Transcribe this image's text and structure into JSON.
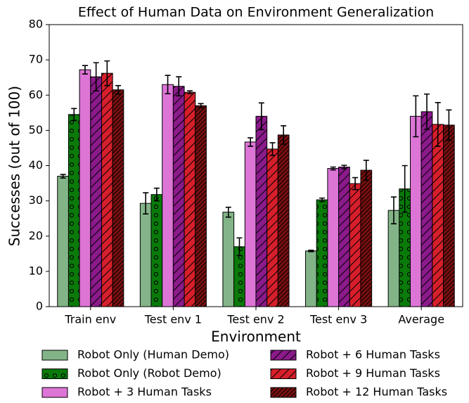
{
  "chart_data": {
    "type": "bar",
    "title": "Effect of Human Data on Environment Generalization",
    "xlabel": "Environment",
    "ylabel": "Successes (out of 100)",
    "categories": [
      "Train env",
      "Test env 1",
      "Test env 2",
      "Test env 3",
      "Average"
    ],
    "ylim": [
      0,
      80
    ],
    "yticks": [
      0,
      10,
      20,
      30,
      40,
      50,
      60,
      70,
      80
    ],
    "grid": false,
    "legend": "below",
    "series": [
      {
        "name": "Robot Only (Human Demo)",
        "color": "#82b487",
        "hatch": "",
        "values": [
          37,
          29.3,
          26.8,
          15.8,
          27.3
        ],
        "errors": [
          0.5,
          3,
          1.4,
          0.2,
          3.8
        ]
      },
      {
        "name": "Robot Only (Robot Demo)",
        "color": "#0a7a0a",
        "hatch": "o",
        "values": [
          54.5,
          31.8,
          17,
          30.3,
          33.4
        ],
        "errors": [
          1.7,
          1.8,
          2.5,
          0.5,
          6.6
        ]
      },
      {
        "name": "Robot + 3 Human Tasks",
        "color": "#dc75d6",
        "hatch": "",
        "values": [
          67.2,
          63,
          46.7,
          39.2,
          54
        ],
        "errors": [
          1.2,
          2.6,
          1.2,
          0.4,
          5.8
        ]
      },
      {
        "name": "Robot + 6 Human Tasks",
        "color": "#8b1a8b",
        "hatch": "/",
        "values": [
          65.2,
          62.5,
          54,
          39.6,
          55.3
        ],
        "errors": [
          4,
          2.7,
          3.8,
          0.5,
          5
        ]
      },
      {
        "name": "Robot + 9 Human Tasks",
        "color": "#d61f2b",
        "hatch": "/",
        "values": [
          66.2,
          60.8,
          44.7,
          34.9,
          51.7
        ],
        "errors": [
          3.5,
          0.4,
          1.8,
          1.7,
          6.2
        ]
      },
      {
        "name": "Robot + 12 Human Tasks",
        "color": "#7a1010",
        "hatch": "//",
        "values": [
          61.5,
          57,
          48.7,
          38.7,
          51.5
        ],
        "errors": [
          1.2,
          0.6,
          2.6,
          2.8,
          4.3
        ]
      }
    ]
  }
}
